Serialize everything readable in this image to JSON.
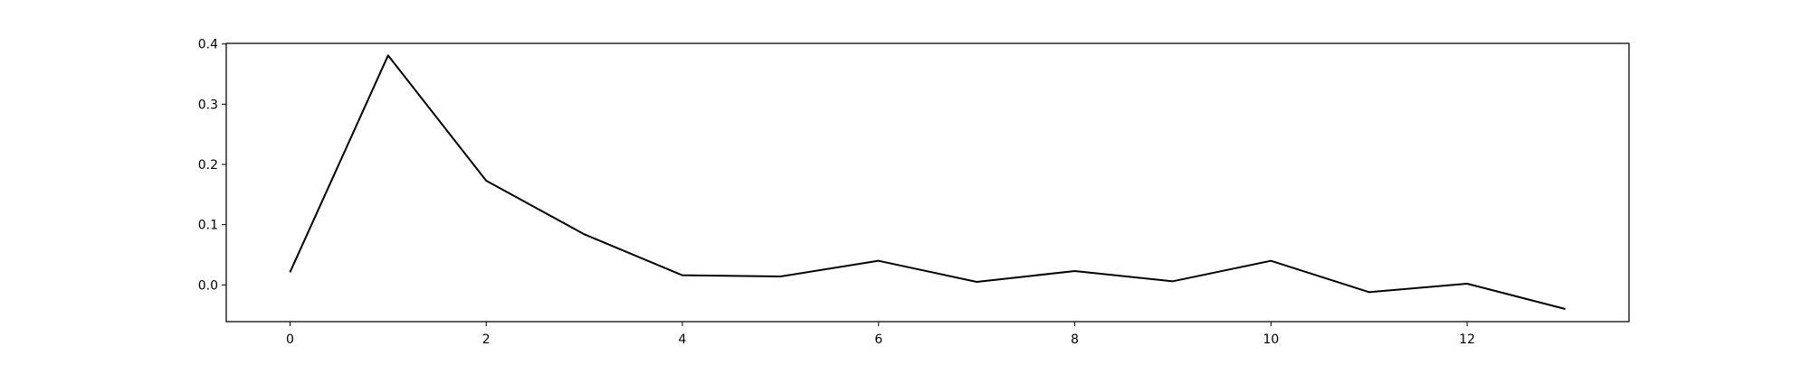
{
  "chart_data": {
    "type": "line",
    "title": "",
    "xlabel": "",
    "ylabel": "",
    "x": [
      0,
      1,
      2,
      3,
      4,
      5,
      6,
      7,
      8,
      9,
      10,
      11,
      12,
      13
    ],
    "series": [
      {
        "values": [
          0.021,
          0.381,
          0.173,
          0.084,
          0.016,
          0.014,
          0.04,
          0.005,
          0.023,
          0.006,
          0.04,
          -0.012,
          0.002,
          -0.04
        ],
        "color": "#000000"
      }
    ],
    "xlim": [
      -0.65,
      13.65
    ],
    "ylim": [
      -0.061,
      0.401
    ],
    "xticks": [
      0,
      2,
      4,
      6,
      8,
      10,
      12
    ],
    "xtick_labels": [
      "0",
      "2",
      "4",
      "6",
      "8",
      "10",
      "12"
    ],
    "yticks": [
      0.0,
      0.1,
      0.2,
      0.3,
      0.4
    ],
    "ytick_labels": [
      "0.0",
      "0.1",
      "0.2",
      "0.3",
      "0.4"
    ],
    "grid": false,
    "legend": "none"
  }
}
